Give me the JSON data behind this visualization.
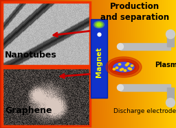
{
  "title": "Production\nand separation",
  "label_nanotubes": "Nanotubes",
  "label_graphene": "Graphene",
  "label_plasma": "Plasma",
  "label_discharge": "Discharge electrodes",
  "label_magnet": "Magnet",
  "magnet_color": "#2244CC",
  "magnet_text_color": "#FFFF00",
  "title_color": "#000000",
  "figsize": [
    2.56,
    1.87
  ],
  "dpi": 100,
  "panel_border_color": "#FF4400",
  "nt_panel": [
    3,
    3,
    128,
    93
  ],
  "gr_panel": [
    3,
    99,
    128,
    85
  ]
}
